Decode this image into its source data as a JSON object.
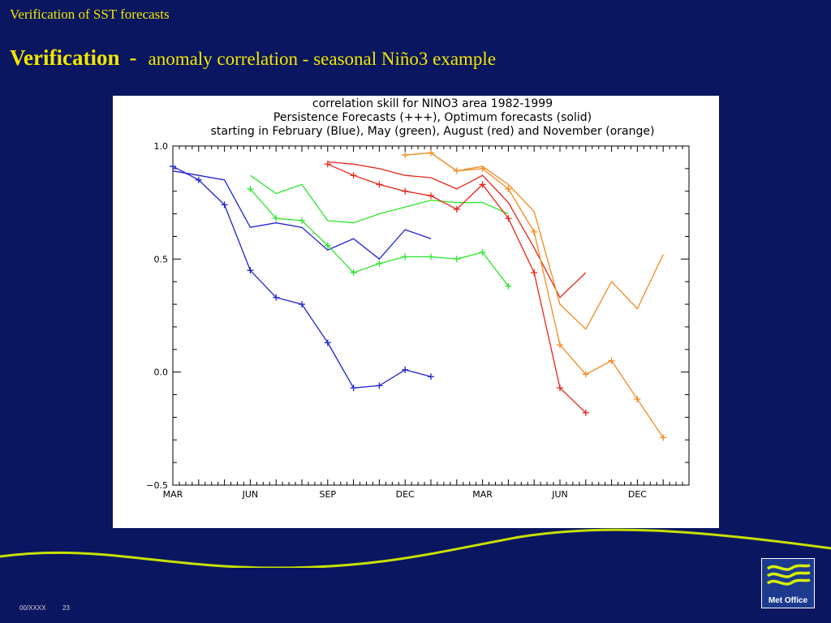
{
  "slide": {
    "top_label": "Verification of SST forecasts",
    "title_bold": "Verification",
    "title_separator": "-",
    "title_subtitle": "anomaly correlation - seasonal Niño3 example",
    "footer_code": "00/XXXX",
    "page_number": "23",
    "logo_text": "Met Office",
    "colors": {
      "background": "#0a1660",
      "title": "#f2e600",
      "wave": "#c8e000"
    }
  },
  "chart_data": {
    "type": "line",
    "title_lines": [
      "correlation  skill for NINO3 area 1982-1999",
      "Persistence Forecasts (+++), Optimum forecasts (solid)",
      "starting in February (Blue), May (green), August (red) and November (orange)"
    ],
    "x_ticks": [
      {
        "label": "MAR",
        "x": 0
      },
      {
        "label": "JUN",
        "x": 3
      },
      {
        "label": "SEP",
        "x": 6
      },
      {
        "label": "DEC",
        "x": 9
      },
      {
        "label": "MAR",
        "x": 12
      },
      {
        "label": "JUN",
        "x": 15
      },
      {
        "label": "DEC",
        "x": 18
      }
    ],
    "x_range": [
      0,
      20
    ],
    "y_ticks": [
      {
        "label": "1.0",
        "y": 1.0
      },
      {
        "label": "0.5",
        "y": 0.5
      },
      {
        "label": "0.0",
        "y": 0.0
      },
      {
        "label": "−0.5",
        "y": -0.5
      }
    ],
    "y_range": [
      -0.5,
      1.0
    ],
    "series": [
      {
        "color": "#1f22d0",
        "style": "solid",
        "points": [
          [
            0,
            0.89
          ],
          [
            1,
            0.87
          ],
          [
            2,
            0.85
          ],
          [
            3,
            0.64
          ],
          [
            4,
            0.66
          ],
          [
            5,
            0.64
          ],
          [
            6,
            0.54
          ],
          [
            7,
            0.59
          ],
          [
            8,
            0.5
          ],
          [
            9,
            0.63
          ],
          [
            10,
            0.59
          ]
        ]
      },
      {
        "color": "#1f22d0",
        "style": "persistence",
        "points": [
          [
            0,
            0.91
          ],
          [
            1,
            0.85
          ],
          [
            2,
            0.74
          ],
          [
            3,
            0.45
          ],
          [
            4,
            0.33
          ],
          [
            5,
            0.3
          ],
          [
            6,
            0.13
          ],
          [
            7,
            -0.07
          ],
          [
            8,
            -0.06
          ],
          [
            9,
            0.01
          ],
          [
            10,
            -0.02
          ]
        ]
      },
      {
        "color": "#2ee62e",
        "style": "solid",
        "points": [
          [
            3,
            0.87
          ],
          [
            4,
            0.79
          ],
          [
            5,
            0.83
          ],
          [
            6,
            0.67
          ],
          [
            7,
            0.66
          ],
          [
            8,
            0.7
          ],
          [
            9,
            0.73
          ],
          [
            10,
            0.76
          ],
          [
            11,
            0.75
          ],
          [
            12,
            0.75
          ],
          [
            13,
            0.7
          ]
        ]
      },
      {
        "color": "#2ee62e",
        "style": "persistence",
        "points": [
          [
            3,
            0.81
          ],
          [
            4,
            0.68
          ],
          [
            5,
            0.67
          ],
          [
            6,
            0.56
          ],
          [
            7,
            0.44
          ],
          [
            8,
            0.48
          ],
          [
            9,
            0.51
          ],
          [
            10,
            0.51
          ],
          [
            11,
            0.5
          ],
          [
            12,
            0.53
          ],
          [
            13,
            0.38
          ]
        ]
      },
      {
        "color": "#e8251a",
        "style": "solid",
        "points": [
          [
            6,
            0.93
          ],
          [
            7,
            0.92
          ],
          [
            8,
            0.9
          ],
          [
            9,
            0.87
          ],
          [
            10,
            0.86
          ],
          [
            11,
            0.81
          ],
          [
            12,
            0.87
          ],
          [
            13,
            0.75
          ],
          [
            14,
            0.55
          ],
          [
            15,
            0.33
          ],
          [
            16,
            0.44
          ]
        ]
      },
      {
        "color": "#e8251a",
        "style": "persistence",
        "points": [
          [
            6,
            0.92
          ],
          [
            7,
            0.87
          ],
          [
            8,
            0.83
          ],
          [
            9,
            0.8
          ],
          [
            10,
            0.78
          ],
          [
            11,
            0.72
          ],
          [
            12,
            0.83
          ],
          [
            13,
            0.68
          ],
          [
            14,
            0.44
          ],
          [
            15,
            -0.07
          ],
          [
            16,
            -0.18
          ]
        ]
      },
      {
        "color": "#f58a1f",
        "style": "solid",
        "points": [
          [
            9,
            0.96
          ],
          [
            10,
            0.97
          ],
          [
            11,
            0.89
          ],
          [
            12,
            0.91
          ],
          [
            13,
            0.83
          ],
          [
            14,
            0.71
          ],
          [
            15,
            0.3
          ],
          [
            16,
            0.19
          ],
          [
            17,
            0.4
          ],
          [
            18,
            0.28
          ],
          [
            19,
            0.52
          ]
        ]
      },
      {
        "color": "#f58a1f",
        "style": "persistence",
        "points": [
          [
            9,
            0.96
          ],
          [
            10,
            0.97
          ],
          [
            11,
            0.89
          ],
          [
            12,
            0.9
          ],
          [
            13,
            0.81
          ],
          [
            14,
            0.62
          ],
          [
            15,
            0.12
          ],
          [
            16,
            -0.01
          ],
          [
            17,
            0.05
          ],
          [
            18,
            -0.12
          ],
          [
            19,
            -0.29
          ]
        ]
      }
    ]
  }
}
